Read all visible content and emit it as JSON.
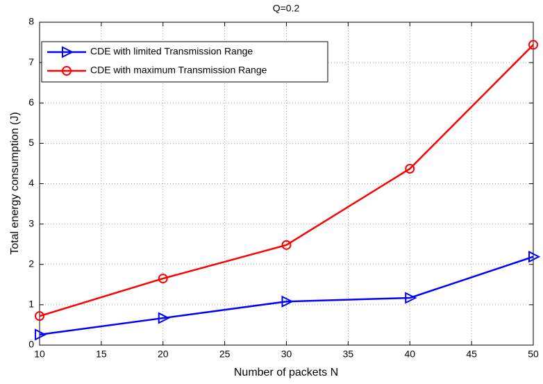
{
  "chart_data": {
    "type": "line",
    "title": "Q=0.2",
    "x_label": "Number of packets N",
    "y_label": "Total energy consumption (J)",
    "x": [
      10,
      20,
      30,
      40,
      50
    ],
    "series": [
      {
        "name": "CDE with limited Transmission Range",
        "color": "#0000ff",
        "marker": "triangle-right",
        "values": [
          0.26,
          0.67,
          1.08,
          1.17,
          2.19
        ]
      },
      {
        "name": "CDE with maximum Transmission Range",
        "color": "#ff0000",
        "marker": "circle",
        "values": [
          0.72,
          1.65,
          2.48,
          4.37,
          7.44
        ]
      }
    ],
    "xlim": [
      10,
      50
    ],
    "xticks": [
      10,
      15,
      20,
      25,
      30,
      35,
      40,
      45,
      50
    ],
    "ylim": [
      0,
      8
    ],
    "yticks": [
      0,
      1,
      2,
      3,
      4,
      5,
      6,
      7,
      8
    ],
    "grid": true,
    "legend": "upper left"
  }
}
